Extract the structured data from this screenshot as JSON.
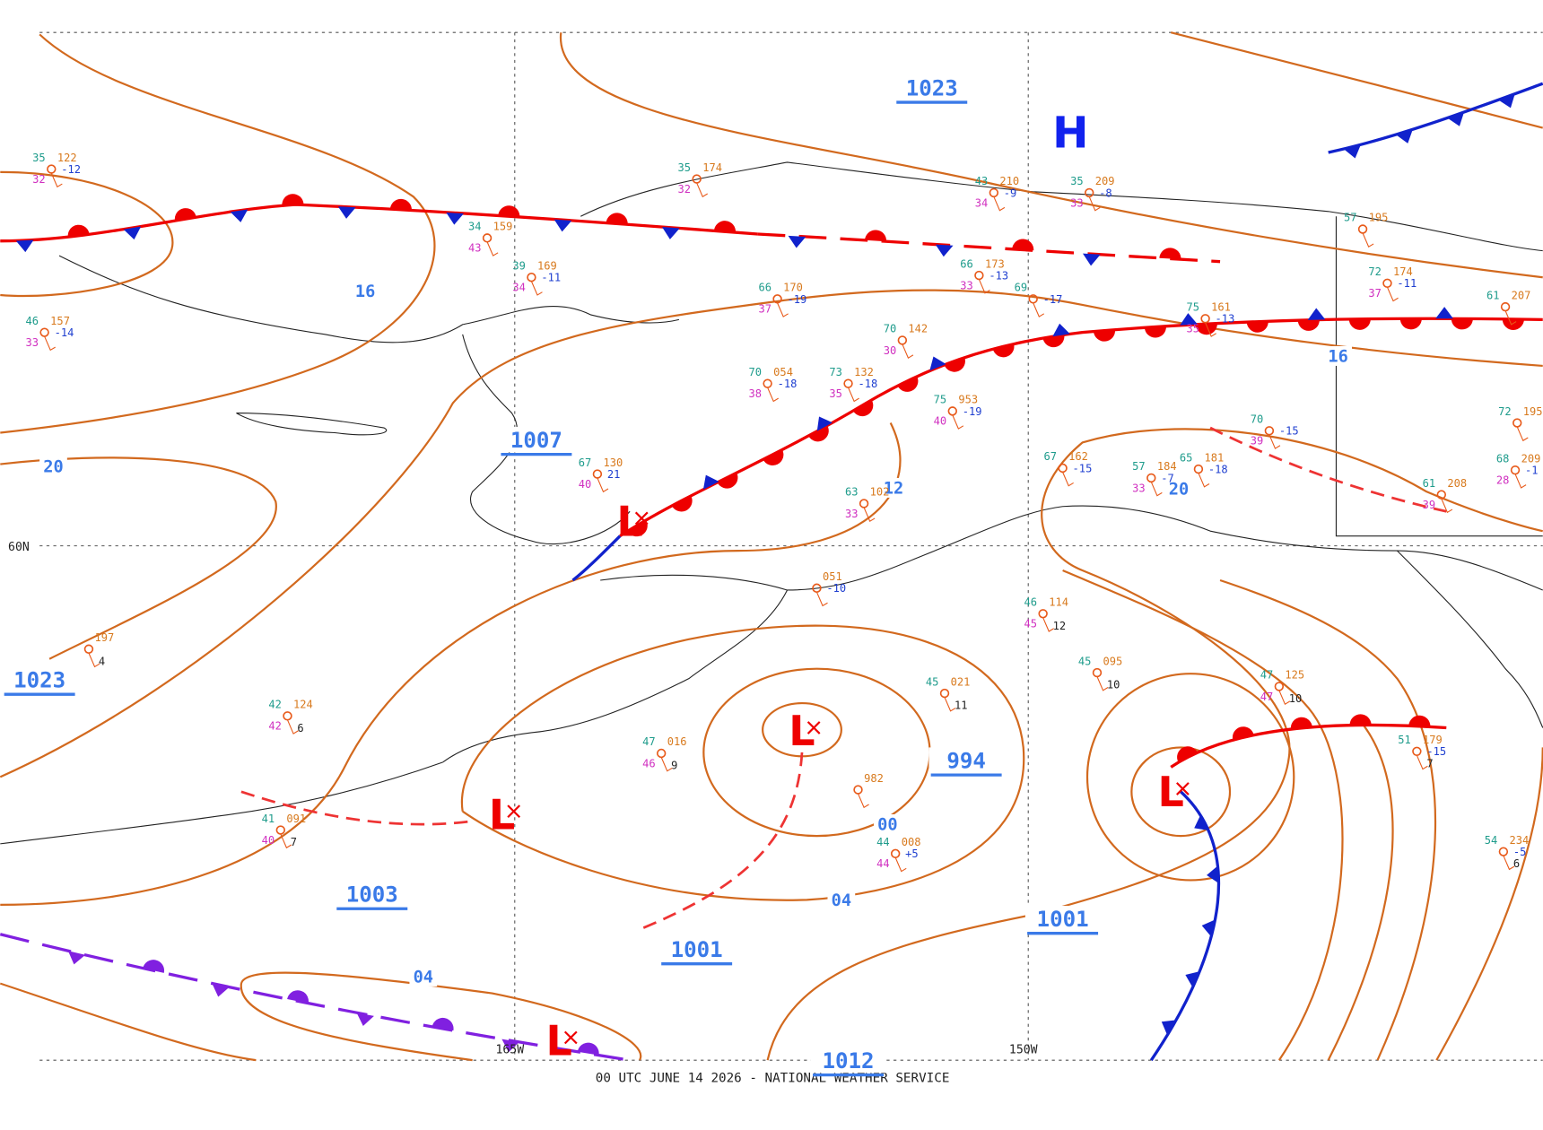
{
  "map": {
    "footer": "00 UTC JUNE 14 2026 - NATIONAL WEATHER SERVICE",
    "lat_label": "60N",
    "lon_labels": [
      "165W",
      "150W"
    ],
    "highs": [
      "H"
    ],
    "lows": [
      "L",
      "L",
      "L",
      "L",
      "L"
    ],
    "isobar_labels": [
      "1023",
      "1007",
      "1023",
      "1003",
      "1001",
      "994",
      "1001",
      "1012"
    ],
    "isobar_short_labels": [
      "16",
      "20",
      "12",
      "20",
      "16",
      "00",
      "04",
      "04"
    ],
    "stations": [
      {
        "temp": "35",
        "pressure": "122",
        "dew": "32",
        "tendency": "-12"
      },
      {
        "temp": "46",
        "pressure": "157",
        "dew": "33",
        "tendency": "-14"
      },
      {
        "temp": "35",
        "pressure": "174",
        "dew": "32"
      },
      {
        "temp": "34",
        "pressure": "159",
        "dew": "43"
      },
      {
        "temp": "39",
        "pressure": "169",
        "dew": "34",
        "tendency": "-11"
      },
      {
        "temp": "66",
        "pressure": "170",
        "dew": "37",
        "tendency": "-19"
      },
      {
        "temp": "70",
        "pressure": "142",
        "dew": "30"
      },
      {
        "temp": "75",
        "pressure": "953",
        "dew": "40",
        "tendency": "-19"
      },
      {
        "temp": "70",
        "pressure": "054",
        "dew": "38",
        "tendency": "-18"
      },
      {
        "temp": "73",
        "pressure": "132",
        "dew": "35",
        "tendency": "-18"
      },
      {
        "temp": "75",
        "pressure": "161",
        "dew": "35",
        "tendency": "-13"
      },
      {
        "temp": "57",
        "pressure": "195"
      },
      {
        "temp": "72",
        "pressure": "174",
        "dew": "37",
        "tendency": "-11"
      },
      {
        "temp": "67",
        "pressure": "162",
        "tendency": "-15"
      },
      {
        "temp": "57",
        "pressure": "184",
        "dew": "33",
        "tendency": "-7"
      },
      {
        "temp": "65",
        "pressure": "181",
        "tendency": "-18"
      },
      {
        "temp": "70",
        "dew": "39",
        "tendency": "-15"
      },
      {
        "temp": "61",
        "pressure": "208",
        "dew": "39"
      },
      {
        "temp": "63",
        "pressure": "102",
        "dew": "33"
      },
      {
        "temp": "67",
        "pressure": "130",
        "dew": "40",
        "tendency": "21"
      },
      {
        "pressure": "197",
        "extra": "4"
      },
      {
        "pressure": "051",
        "tendency": "-10"
      },
      {
        "temp": "46",
        "pressure": "114",
        "dew": "45",
        "extra": "12"
      },
      {
        "temp": "45",
        "pressure": "095",
        "extra": "10"
      },
      {
        "temp": "47",
        "pressure": "125",
        "dew": "47",
        "extra": "10"
      },
      {
        "temp": "45",
        "pressure": "021",
        "extra": "11"
      },
      {
        "pressure": "982"
      },
      {
        "temp": "44",
        "pressure": "008",
        "dew": "44",
        "tendency": "+5"
      },
      {
        "temp": "51",
        "pressure": "179",
        "tendency": "-15",
        "extra": "7"
      },
      {
        "temp": "54",
        "pressure": "234",
        "tendency": "-5",
        "extra": "6"
      },
      {
        "temp": "42",
        "pressure": "124",
        "dew": "42",
        "extra": "6"
      },
      {
        "temp": "47",
        "pressure": "016",
        "dew": "46",
        "extra": "9"
      },
      {
        "temp": "41",
        "pressure": "091",
        "dew": "40",
        "extra": "7"
      },
      {
        "temp": "61",
        "pressure": "207"
      },
      {
        "temp": "72",
        "pressure": "195"
      },
      {
        "temp": "68",
        "pressure": "209",
        "dew": "28",
        "tendency": "-1"
      },
      {
        "temp": "66",
        "pressure": "173",
        "dew": "33",
        "tendency": "-13"
      },
      {
        "temp": "69",
        "tendency": "-17"
      },
      {
        "temp": "43",
        "pressure": "210",
        "dew": "34",
        "tendency": "-9"
      },
      {
        "temp": "35",
        "pressure": "209",
        "dew": "33",
        "tendency": "-8"
      }
    ]
  }
}
